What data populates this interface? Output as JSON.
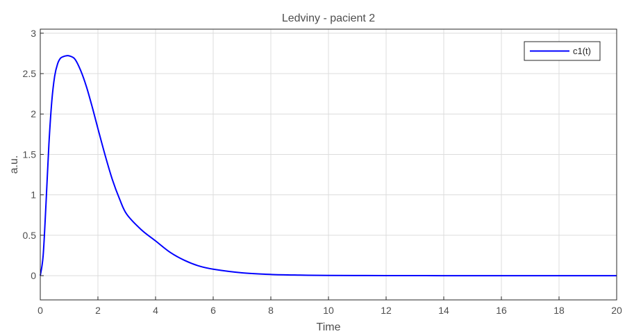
{
  "chart_data": {
    "type": "line",
    "title": "Ledviny - pacient 2",
    "xlabel": "Time",
    "ylabel": "a.u.",
    "xlim": [
      0,
      20
    ],
    "ylim": [
      -0.3,
      3.05
    ],
    "xticks": [
      0,
      2,
      4,
      6,
      8,
      10,
      12,
      14,
      16,
      18,
      20
    ],
    "yticks": [
      0,
      0.5,
      1,
      1.5,
      2,
      2.5,
      3
    ],
    "xtick_labels": [
      "0",
      "2",
      "4",
      "6",
      "8",
      "10",
      "12",
      "14",
      "16",
      "18",
      "20"
    ],
    "ytick_labels": [
      "0",
      "0.5",
      "1",
      "1.5",
      "2",
      "2.5",
      "3"
    ],
    "grid": true,
    "legend_position": "top-right",
    "series": [
      {
        "name": "c1(t)",
        "color": "#0000ff",
        "x": [
          0,
          0.1,
          0.2,
          0.3,
          0.4,
          0.5,
          0.6,
          0.7,
          0.8,
          0.9,
          1.0,
          1.2,
          1.4,
          1.6,
          1.8,
          2.0,
          2.25,
          2.5,
          2.75,
          3.0,
          3.5,
          4.0,
          4.5,
          5.0,
          5.5,
          6.0,
          7.0,
          8.0,
          9.0,
          10.0,
          12.0,
          14.0,
          16.0,
          18.0,
          20.0
        ],
        "y": [
          0,
          0.25,
          0.9,
          1.63,
          2.16,
          2.47,
          2.62,
          2.69,
          2.71,
          2.72,
          2.72,
          2.68,
          2.54,
          2.34,
          2.09,
          1.82,
          1.49,
          1.19,
          0.95,
          0.76,
          0.57,
          0.43,
          0.29,
          0.19,
          0.12,
          0.08,
          0.035,
          0.015,
          0.007,
          0.003,
          0.001,
          0.0,
          0.0,
          0.0,
          0.0
        ]
      }
    ]
  }
}
